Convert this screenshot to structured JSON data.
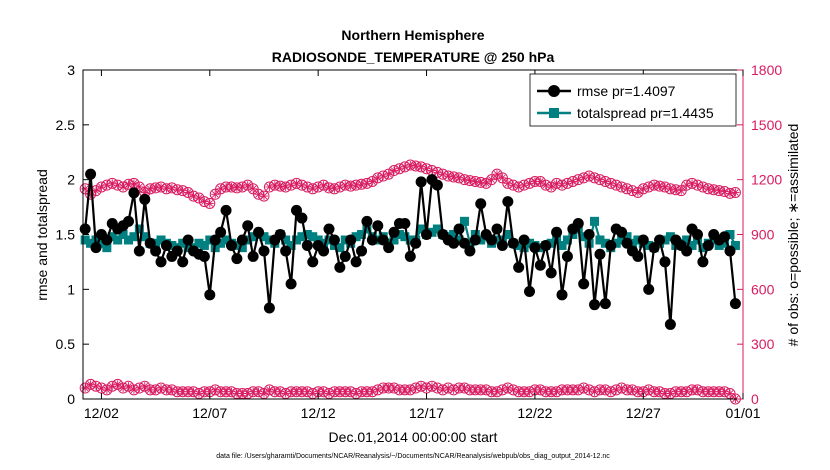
{
  "colors": {
    "rmse": "#000000",
    "spread": "#008080",
    "obs": "#d81b60",
    "axis": "#000000",
    "grid": "#dcdcdc"
  },
  "chart_data": {
    "type": "line",
    "title": "Northern Hemisphere",
    "subtitle": "RADIOSONDE_TEMPERATURE @ 250 hPa",
    "xlabel": "Dec.01,2014 00:00:00 start",
    "ylabel": "rmse and totalspread",
    "y2label": "# of obs: o=possible; ∗=assimilated",
    "footnote": "data file: /Users/gharamti/Documents/NCAR/Reanalysis/~/Documents/NCAR/Reanalysis/webpub/obs_diag_output_2014-12.nc",
    "xlim": [
      0.65,
      31.1
    ],
    "ylim": [
      0,
      3
    ],
    "y2lim": [
      0,
      1800
    ],
    "x_ticks": [
      1.5,
      6.5,
      11.5,
      16.5,
      21.5,
      26.5,
      31.5
    ],
    "x_tick_labels": [
      "12/02",
      "12/07",
      "12/12",
      "12/17",
      "12/22",
      "12/27",
      "01/01"
    ],
    "y_ticks": [
      0,
      0.5,
      1,
      1.5,
      2,
      2.5,
      3
    ],
    "y_tick_labels": [
      "0",
      "0.5",
      "1",
      "1.5",
      "2",
      "2.5",
      "3"
    ],
    "y2_ticks": [
      0,
      300,
      600,
      900,
      1200,
      1500,
      1800
    ],
    "y2_tick_labels": [
      "0",
      "300",
      "600",
      "900",
      "1200",
      "1500",
      "1800"
    ],
    "legend": {
      "position": "top-right",
      "entries": [
        "rmse pr=1.4097",
        "totalspread pr=1.4435"
      ]
    },
    "x_start": 0.75,
    "x_step": 0.25,
    "series": [
      {
        "name": "rmse pr=1.4097",
        "values": [
          1.55,
          2.05,
          1.38,
          1.5,
          1.45,
          1.6,
          1.55,
          1.58,
          1.62,
          1.88,
          1.35,
          1.82,
          1.42,
          1.35,
          1.25,
          1.4,
          1.3,
          1.35,
          1.25,
          1.45,
          1.35,
          1.32,
          1.3,
          0.95,
          1.45,
          1.52,
          1.72,
          1.4,
          1.28,
          1.45,
          1.58,
          1.3,
          1.52,
          1.35,
          0.83,
          1.45,
          1.5,
          1.35,
          1.05,
          1.72,
          1.65,
          1.4,
          1.25,
          1.4,
          1.35,
          1.55,
          1.45,
          1.2,
          1.3,
          1.45,
          1.25,
          1.35,
          1.62,
          1.45,
          1.58,
          1.45,
          1.38,
          1.52,
          1.6,
          1.6,
          1.3,
          1.42,
          1.98,
          1.5,
          2.0,
          1.95,
          1.5,
          1.45,
          1.42,
          1.55,
          1.42,
          1.35,
          1.45,
          1.78,
          1.5,
          1.45,
          1.55,
          1.4,
          1.8,
          1.42,
          1.2,
          1.45,
          0.98,
          1.38,
          1.22,
          1.4,
          1.15,
          1.52,
          0.95,
          1.3,
          1.55,
          1.6,
          1.05,
          1.5,
          0.86,
          1.32,
          0.87,
          1.4,
          1.55,
          1.52,
          1.42,
          1.35,
          1.3,
          1.45,
          1.0,
          1.38,
          1.45,
          1.25,
          0.68,
          1.45,
          1.4,
          1.35,
          1.55,
          1.5,
          1.25,
          1.4,
          1.5,
          1.45,
          1.48,
          1.35,
          0.87
        ]
      },
      {
        "name": "totalspread pr=1.4435",
        "values": [
          1.45,
          1.42,
          1.45,
          1.42,
          1.38,
          1.48,
          1.45,
          1.5,
          1.45,
          1.48,
          1.55,
          1.48,
          1.42,
          1.42,
          1.45,
          1.42,
          1.4,
          1.38,
          1.42,
          1.38,
          1.38,
          1.42,
          1.4,
          1.45,
          1.38,
          1.42,
          1.45,
          1.42,
          1.4,
          1.38,
          1.45,
          1.48,
          1.5,
          1.48,
          1.45,
          1.42,
          1.5,
          1.45,
          1.4,
          1.45,
          1.48,
          1.5,
          1.48,
          1.45,
          1.42,
          1.45,
          1.4,
          1.38,
          1.45,
          1.42,
          1.48,
          1.5,
          1.55,
          1.48,
          1.45,
          1.48,
          1.42,
          1.45,
          1.5,
          1.48,
          1.45,
          1.45,
          1.55,
          1.5,
          1.52,
          1.55,
          1.5,
          1.48,
          1.5,
          1.45,
          1.62,
          1.42,
          1.5,
          1.45,
          1.48,
          1.42,
          1.45,
          1.45,
          1.5,
          1.42,
          1.4,
          1.38,
          1.42,
          1.4,
          1.38,
          1.4,
          1.42,
          1.45,
          1.4,
          1.45,
          1.5,
          1.55,
          1.48,
          1.42,
          1.62,
          1.45,
          1.42,
          1.38,
          1.42,
          1.45,
          1.48,
          1.42,
          1.45,
          1.42,
          1.4,
          1.38,
          1.42,
          1.45,
          1.48,
          1.4,
          1.42,
          1.45,
          1.4,
          1.45,
          1.38,
          1.42,
          1.45,
          1.4,
          1.42,
          1.5,
          1.4
        ]
      },
      {
        "name": "obs possible",
        "axis": "right",
        "values": [
          1150,
          1120,
          1140,
          1160,
          1170,
          1180,
          1170,
          1160,
          1175,
          1180,
          1160,
          1130,
          1150,
          1155,
          1160,
          1150,
          1155,
          1145,
          1140,
          1130,
          1110,
          1100,
          1080,
          1070,
          1120,
          1150,
          1160,
          1160,
          1155,
          1160,
          1170,
          1150,
          1120,
          1110,
          1160,
          1170,
          1165,
          1160,
          1170,
          1180,
          1170,
          1160,
          1150,
          1160,
          1170,
          1155,
          1150,
          1160,
          1170,
          1165,
          1170,
          1175,
          1180,
          1190,
          1210,
          1220,
          1230,
          1250,
          1260,
          1270,
          1280,
          1275,
          1270,
          1260,
          1250,
          1240,
          1230,
          1220,
          1215,
          1210,
          1200,
          1195,
          1190,
          1185,
          1180,
          1200,
          1230,
          1210,
          1180,
          1170,
          1160,
          1170,
          1180,
          1190,
          1190,
          1170,
          1160,
          1180,
          1170,
          1180,
          1190,
          1200,
          1210,
          1220,
          1210,
          1200,
          1190,
          1180,
          1170,
          1160,
          1150,
          1140,
          1130,
          1150,
          1160,
          1170,
          1165,
          1160,
          1150,
          1145,
          1140,
          1170,
          1180,
          1170,
          1160,
          1150,
          1145,
          1140,
          1135,
          1125,
          1130
        ]
      },
      {
        "name": "obs assimilated",
        "axis": "right",
        "values": [
          60,
          80,
          70,
          60,
          50,
          70,
          80,
          60,
          70,
          50,
          60,
          70,
          50,
          50,
          60,
          50,
          50,
          40,
          40,
          40,
          40,
          30,
          40,
          40,
          50,
          40,
          40,
          40,
          30,
          30,
          30,
          40,
          40,
          30,
          50,
          40,
          40,
          30,
          40,
          40,
          40,
          40,
          30,
          40,
          40,
          30,
          40,
          40,
          40,
          40,
          30,
          40,
          40,
          40,
          50,
          60,
          60,
          60,
          50,
          50,
          50,
          60,
          70,
          60,
          70,
          60,
          50,
          60,
          50,
          60,
          60,
          50,
          50,
          50,
          50,
          40,
          40,
          50,
          60,
          50,
          40,
          40,
          40,
          50,
          50,
          40,
          40,
          40,
          50,
          50,
          50,
          50,
          60,
          50,
          40,
          50,
          50,
          40,
          50,
          60,
          50,
          50,
          40,
          40,
          50,
          40,
          40,
          30,
          30,
          40,
          40,
          40,
          50,
          50,
          40,
          40,
          40,
          40,
          40,
          30,
          0
        ]
      }
    ]
  }
}
